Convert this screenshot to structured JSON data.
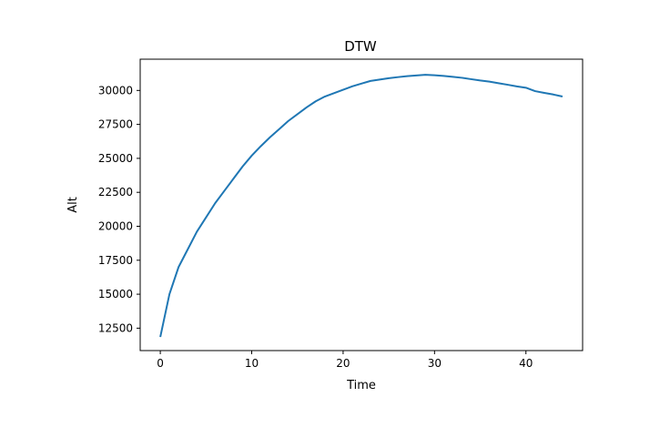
{
  "chart_data": {
    "type": "line",
    "title": "DTW",
    "xlabel": "Time",
    "ylabel": "Alt",
    "xlim": [
      -2.2,
      46.2
    ],
    "ylim": [
      10850,
      32300
    ],
    "xticks": [
      0,
      10,
      20,
      30,
      40
    ],
    "xtick_labels": [
      "0",
      "10",
      "20",
      "30",
      "40"
    ],
    "yticks": [
      12500,
      15000,
      17500,
      20000,
      22500,
      25000,
      27500,
      30000
    ],
    "ytick_labels": [
      "12500",
      "15000",
      "17500",
      "20000",
      "22500",
      "25000",
      "27500",
      "30000"
    ],
    "grid": false,
    "line_color": "#1f77b4",
    "series": [
      {
        "x": [
          0,
          1,
          2,
          3,
          4,
          5,
          6,
          7,
          8,
          9,
          10,
          11,
          12,
          13,
          14,
          15,
          16,
          17,
          18,
          19,
          20,
          21,
          22,
          23,
          24,
          25,
          26,
          27,
          28,
          29,
          30,
          31,
          32,
          33,
          34,
          35,
          36,
          37,
          38,
          39,
          40,
          41,
          42,
          43,
          44
        ],
        "values": [
          11850,
          15000,
          17000,
          18300,
          19600,
          20650,
          21700,
          22600,
          23500,
          24400,
          25200,
          25900,
          26550,
          27150,
          27750,
          28250,
          28750,
          29200,
          29550,
          29800,
          30050,
          30300,
          30500,
          30700,
          30800,
          30900,
          30980,
          31050,
          31100,
          31150,
          31120,
          31070,
          31000,
          30930,
          30830,
          30730,
          30650,
          30530,
          30420,
          30300,
          30200,
          29950,
          29820,
          29700,
          29550
        ]
      }
    ]
  }
}
